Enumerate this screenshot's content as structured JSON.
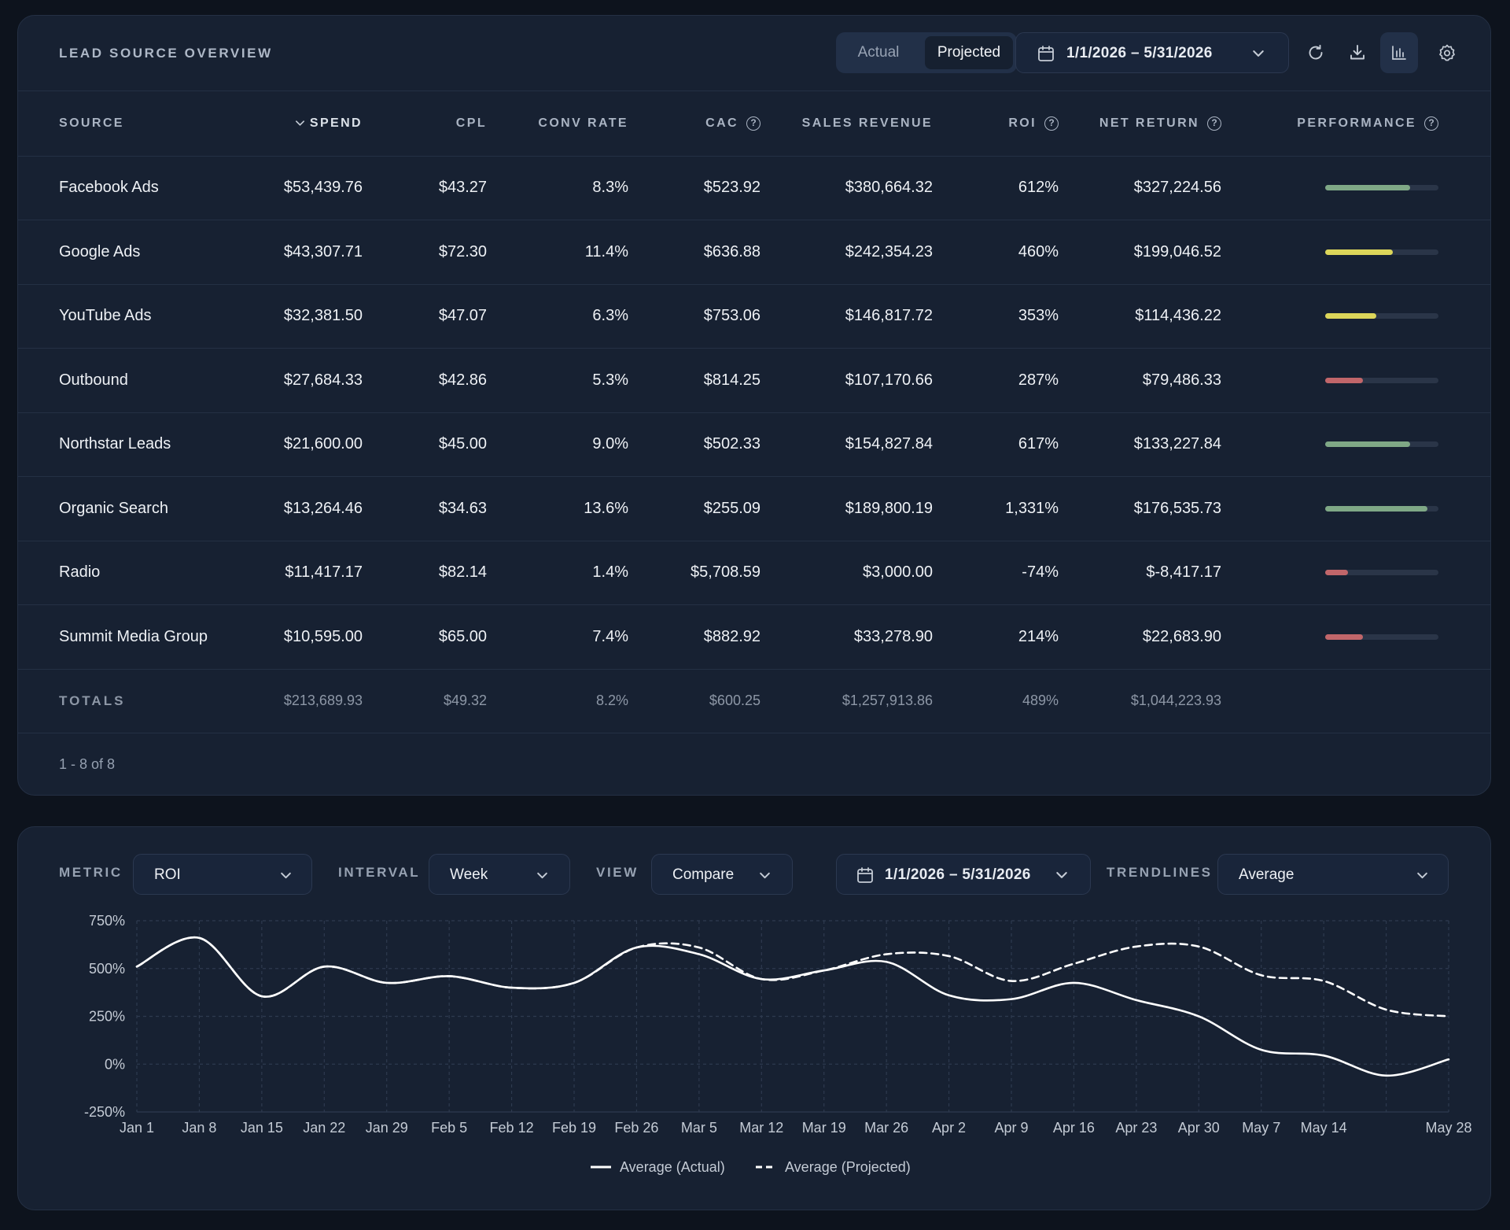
{
  "overview": {
    "title": "LEAD SOURCE OVERVIEW",
    "toggle": {
      "actual": "Actual",
      "projected": "Projected",
      "selected": "Projected"
    },
    "date_range": "1/1/2026 – 5/31/2026",
    "columns": {
      "source": "SOURCE",
      "spend": "SPEND",
      "cpl": "CPL",
      "conv_rate": "CONV RATE",
      "cac": "CAC",
      "sales_revenue": "SALES REVENUE",
      "roi": "ROI",
      "net_return": "NET RETURN",
      "performance": "PERFORMANCE"
    },
    "rows": [
      {
        "source": "Facebook Ads",
        "spend": "$53,439.76",
        "cpl": "$43.27",
        "conv_rate": "8.3%",
        "cac": "$523.92",
        "sales_revenue": "$380,664.32",
        "roi": "612%",
        "net_return": "$327,224.56",
        "performance": 0.75,
        "perf_color": "#7fa886"
      },
      {
        "source": "Google Ads",
        "spend": "$43,307.71",
        "cpl": "$72.30",
        "conv_rate": "11.4%",
        "cac": "$636.88",
        "sales_revenue": "$242,354.23",
        "roi": "460%",
        "net_return": "$199,046.52",
        "performance": 0.6,
        "perf_color": "#dcd65a"
      },
      {
        "source": "YouTube Ads",
        "spend": "$32,381.50",
        "cpl": "$47.07",
        "conv_rate": "6.3%",
        "cac": "$753.06",
        "sales_revenue": "$146,817.72",
        "roi": "353%",
        "net_return": "$114,436.22",
        "performance": 0.45,
        "perf_color": "#dcd65a"
      },
      {
        "source": "Outbound",
        "spend": "$27,684.33",
        "cpl": "$42.86",
        "conv_rate": "5.3%",
        "cac": "$814.25",
        "sales_revenue": "$107,170.66",
        "roi": "287%",
        "net_return": "$79,486.33",
        "performance": 0.33,
        "perf_color": "#c1666a"
      },
      {
        "source": "Northstar Leads",
        "spend": "$21,600.00",
        "cpl": "$45.00",
        "conv_rate": "9.0%",
        "cac": "$502.33",
        "sales_revenue": "$154,827.84",
        "roi": "617%",
        "net_return": "$133,227.84",
        "performance": 0.75,
        "perf_color": "#7fa886"
      },
      {
        "source": "Organic Search",
        "spend": "$13,264.46",
        "cpl": "$34.63",
        "conv_rate": "13.6%",
        "cac": "$255.09",
        "sales_revenue": "$189,800.19",
        "roi": "1,331%",
        "net_return": "$176,535.73",
        "performance": 0.9,
        "perf_color": "#7fa886"
      },
      {
        "source": "Radio",
        "spend": "$11,417.17",
        "cpl": "$82.14",
        "conv_rate": "1.4%",
        "cac": "$5,708.59",
        "sales_revenue": "$3,000.00",
        "roi": "-74%",
        "net_return": "$-8,417.17",
        "performance": 0.2,
        "perf_color": "#c1666a"
      },
      {
        "source": "Summit Media Group",
        "spend": "$10,595.00",
        "cpl": "$65.00",
        "conv_rate": "7.4%",
        "cac": "$882.92",
        "sales_revenue": "$33,278.90",
        "roi": "214%",
        "net_return": "$22,683.90",
        "performance": 0.33,
        "perf_color": "#c1666a"
      }
    ],
    "totals": {
      "label": "TOTALS",
      "spend": "$213,689.93",
      "cpl": "$49.32",
      "conv_rate": "8.2%",
      "cac": "$600.25",
      "sales_revenue": "$1,257,913.86",
      "roi": "489%",
      "net_return": "$1,044,223.93"
    },
    "pager": "1 - 8 of 8",
    "icons": [
      "refresh-icon",
      "download-icon",
      "bar-chart-icon",
      "gear-icon",
      "calendar-icon",
      "help-circle-icon"
    ]
  },
  "trend": {
    "metric_label": "METRIC",
    "metric_value": "ROI",
    "interval_label": "INTERVAL",
    "interval_value": "Week",
    "view_label": "VIEW",
    "view_value": "Compare",
    "date_range": "1/1/2026 – 5/31/2026",
    "trendlines_label": "TRENDLINES",
    "trendlines_value": "Average"
  },
  "chart_data": {
    "type": "line",
    "title": "",
    "xlabel": "",
    "ylabel": "",
    "ylim": [
      -250,
      750
    ],
    "y_ticks": [
      -250,
      0,
      250,
      500,
      750
    ],
    "y_tick_labels": [
      "-250%",
      "0%",
      "250%",
      "500%",
      "750%"
    ],
    "x_tick_labels": [
      "Jan 1",
      "Jan 8",
      "Jan 15",
      "Jan 22",
      "Jan 29",
      "Feb 5",
      "Feb 12",
      "Feb 19",
      "Feb 26",
      "Mar 5",
      "Mar 12",
      "Mar 19",
      "Mar 26",
      "Apr 2",
      "Apr 9",
      "Apr 16",
      "Apr 23",
      "Apr 30",
      "May 7",
      "May 14",
      "May 28"
    ],
    "x": [
      "Jan 1",
      "Jan 8",
      "Jan 15",
      "Jan 22",
      "Jan 29",
      "Feb 5",
      "Feb 12",
      "Feb 19",
      "Feb 26",
      "Mar 5",
      "Mar 12",
      "Mar 19",
      "Mar 26",
      "Apr 2",
      "Apr 9",
      "Apr 16",
      "Apr 23",
      "Apr 30",
      "May 7",
      "May 14",
      "May 21",
      "May 28"
    ],
    "grid": true,
    "legend_position": "bottom-center",
    "series": [
      {
        "name": "Average (Actual)",
        "style": "solid",
        "color": "#ffffff",
        "values": [
          510,
          660,
          355,
          510,
          425,
          460,
          400,
          425,
          610,
          575,
          445,
          490,
          535,
          360,
          340,
          425,
          335,
          250,
          75,
          45,
          -60,
          25
        ]
      },
      {
        "name": "Average (Projected)",
        "style": "dashed",
        "color": "#ffffff",
        "values": [
          510,
          660,
          355,
          510,
          425,
          460,
          400,
          425,
          610,
          610,
          445,
          490,
          575,
          565,
          435,
          525,
          615,
          615,
          465,
          435,
          285,
          250
        ]
      }
    ]
  }
}
